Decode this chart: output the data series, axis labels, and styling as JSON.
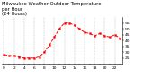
{
  "title": "Milwaukee Weather Outdoor Temperature\nper Hour\n(24 Hours)",
  "hours": [
    0,
    1,
    2,
    3,
    4,
    5,
    6,
    7,
    8,
    9,
    10,
    11,
    12,
    13,
    14,
    15,
    16,
    17,
    18,
    19,
    20,
    21,
    22,
    23
  ],
  "temps": [
    28,
    27,
    27,
    26,
    25,
    25,
    25,
    26,
    30,
    36,
    43,
    50,
    55,
    55,
    53,
    50,
    47,
    46,
    44,
    46,
    44,
    43,
    45,
    42
  ],
  "line_color": "#ff0000",
  "bg_color": "#ffffff",
  "grid_color": "#888888",
  "text_color": "#000000",
  "ylim": [
    20,
    60
  ],
  "yticks": [
    25,
    30,
    35,
    40,
    45,
    50,
    55
  ],
  "title_fontsize": 3.8,
  "tick_fontsize": 3.2,
  "linewidth": 0.7,
  "markersize": 1.4
}
